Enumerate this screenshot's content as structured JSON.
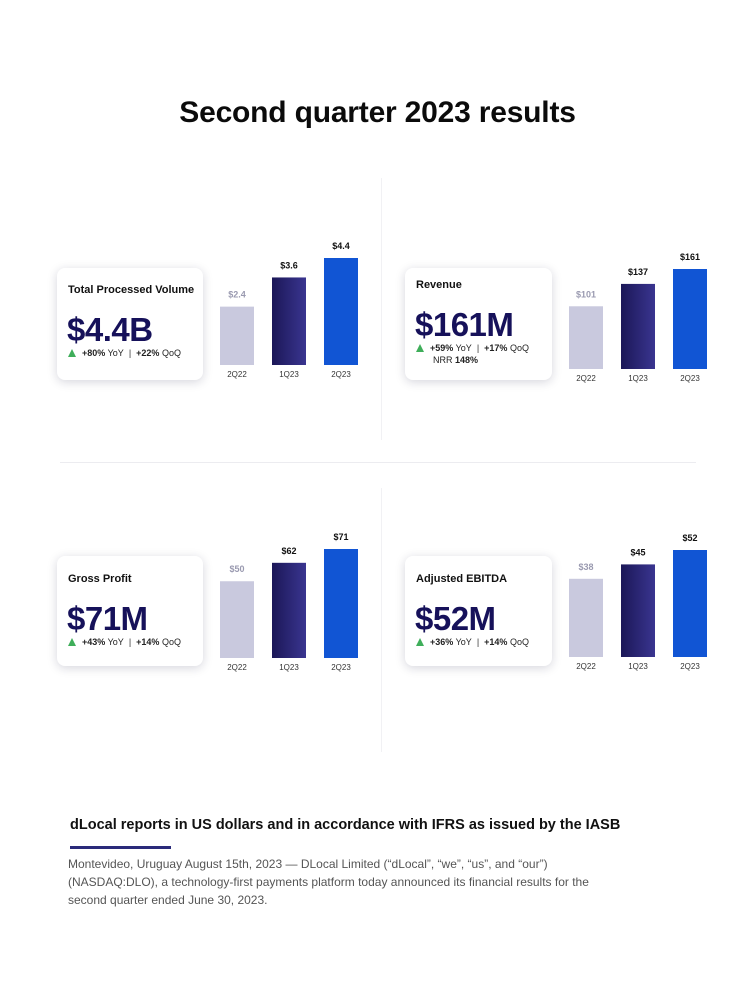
{
  "page": {
    "title": "Second quarter 2023 results"
  },
  "colors": {
    "light_bar": "#c9c9de",
    "mid_bar": "#2b2670",
    "accent_bar": "#1155d4",
    "value_text": "#16115a",
    "up_arrow": "#3fae5a"
  },
  "metrics": [
    {
      "label": "Total Processed Volume",
      "value": "$4.4B",
      "yoy": "+80%",
      "yoy_label": "YoY",
      "qoq": "+22%",
      "qoq_label": "QoQ",
      "separator": "|"
    },
    {
      "label": "Revenue",
      "value": "$161M",
      "yoy": "+59%",
      "yoy_label": "YoY",
      "qoq": "+17%",
      "qoq_label": "QoQ",
      "separator": "|",
      "extra_label": "NRR",
      "extra_value": "148%"
    },
    {
      "label": "Gross Profit",
      "value": "$71M",
      "yoy": "+43%",
      "yoy_label": "YoY",
      "qoq": "+14%",
      "qoq_label": "QoQ",
      "separator": "|"
    },
    {
      "label": "Adjusted EBITDA",
      "value": "$52M",
      "yoy": "+36%",
      "yoy_label": "YoY",
      "qoq": "+14%",
      "qoq_label": "QoQ",
      "separator": "|"
    }
  ],
  "chart_data": [
    {
      "type": "bar",
      "title": "Total Processed Volume",
      "unit": "$B",
      "categories": [
        "2Q22",
        "1Q23",
        "2Q23"
      ],
      "values": [
        2.4,
        3.6,
        4.4
      ],
      "data_labels": [
        "$2.4",
        "$3.6",
        "$4.4"
      ]
    },
    {
      "type": "bar",
      "title": "Revenue",
      "unit": "$M",
      "categories": [
        "2Q22",
        "1Q23",
        "2Q23"
      ],
      "values": [
        101,
        137,
        161
      ],
      "data_labels": [
        "$101",
        "$137",
        "$161"
      ]
    },
    {
      "type": "bar",
      "title": "Gross Profit",
      "unit": "$M",
      "categories": [
        "2Q22",
        "1Q23",
        "2Q23"
      ],
      "values": [
        50,
        62,
        71
      ],
      "data_labels": [
        "$50",
        "$62",
        "$71"
      ]
    },
    {
      "type": "bar",
      "title": "Adjusted EBITDA",
      "unit": "$M",
      "categories": [
        "2Q22",
        "1Q23",
        "2Q23"
      ],
      "values": [
        38,
        45,
        52
      ],
      "data_labels": [
        "$38",
        "$45",
        "$52"
      ]
    }
  ],
  "note": {
    "title": "dLocal reports in US dollars and in accordance with IFRS as issued by the IASB",
    "body": "Montevideo, Uruguay August 15th, 2023 — DLocal Limited (“dLocal”, “we”, “us”, and “our”) (NASDAQ:DLO), a technology-first payments platform today announced its financial results for the second quarter ended June 30, 2023."
  }
}
